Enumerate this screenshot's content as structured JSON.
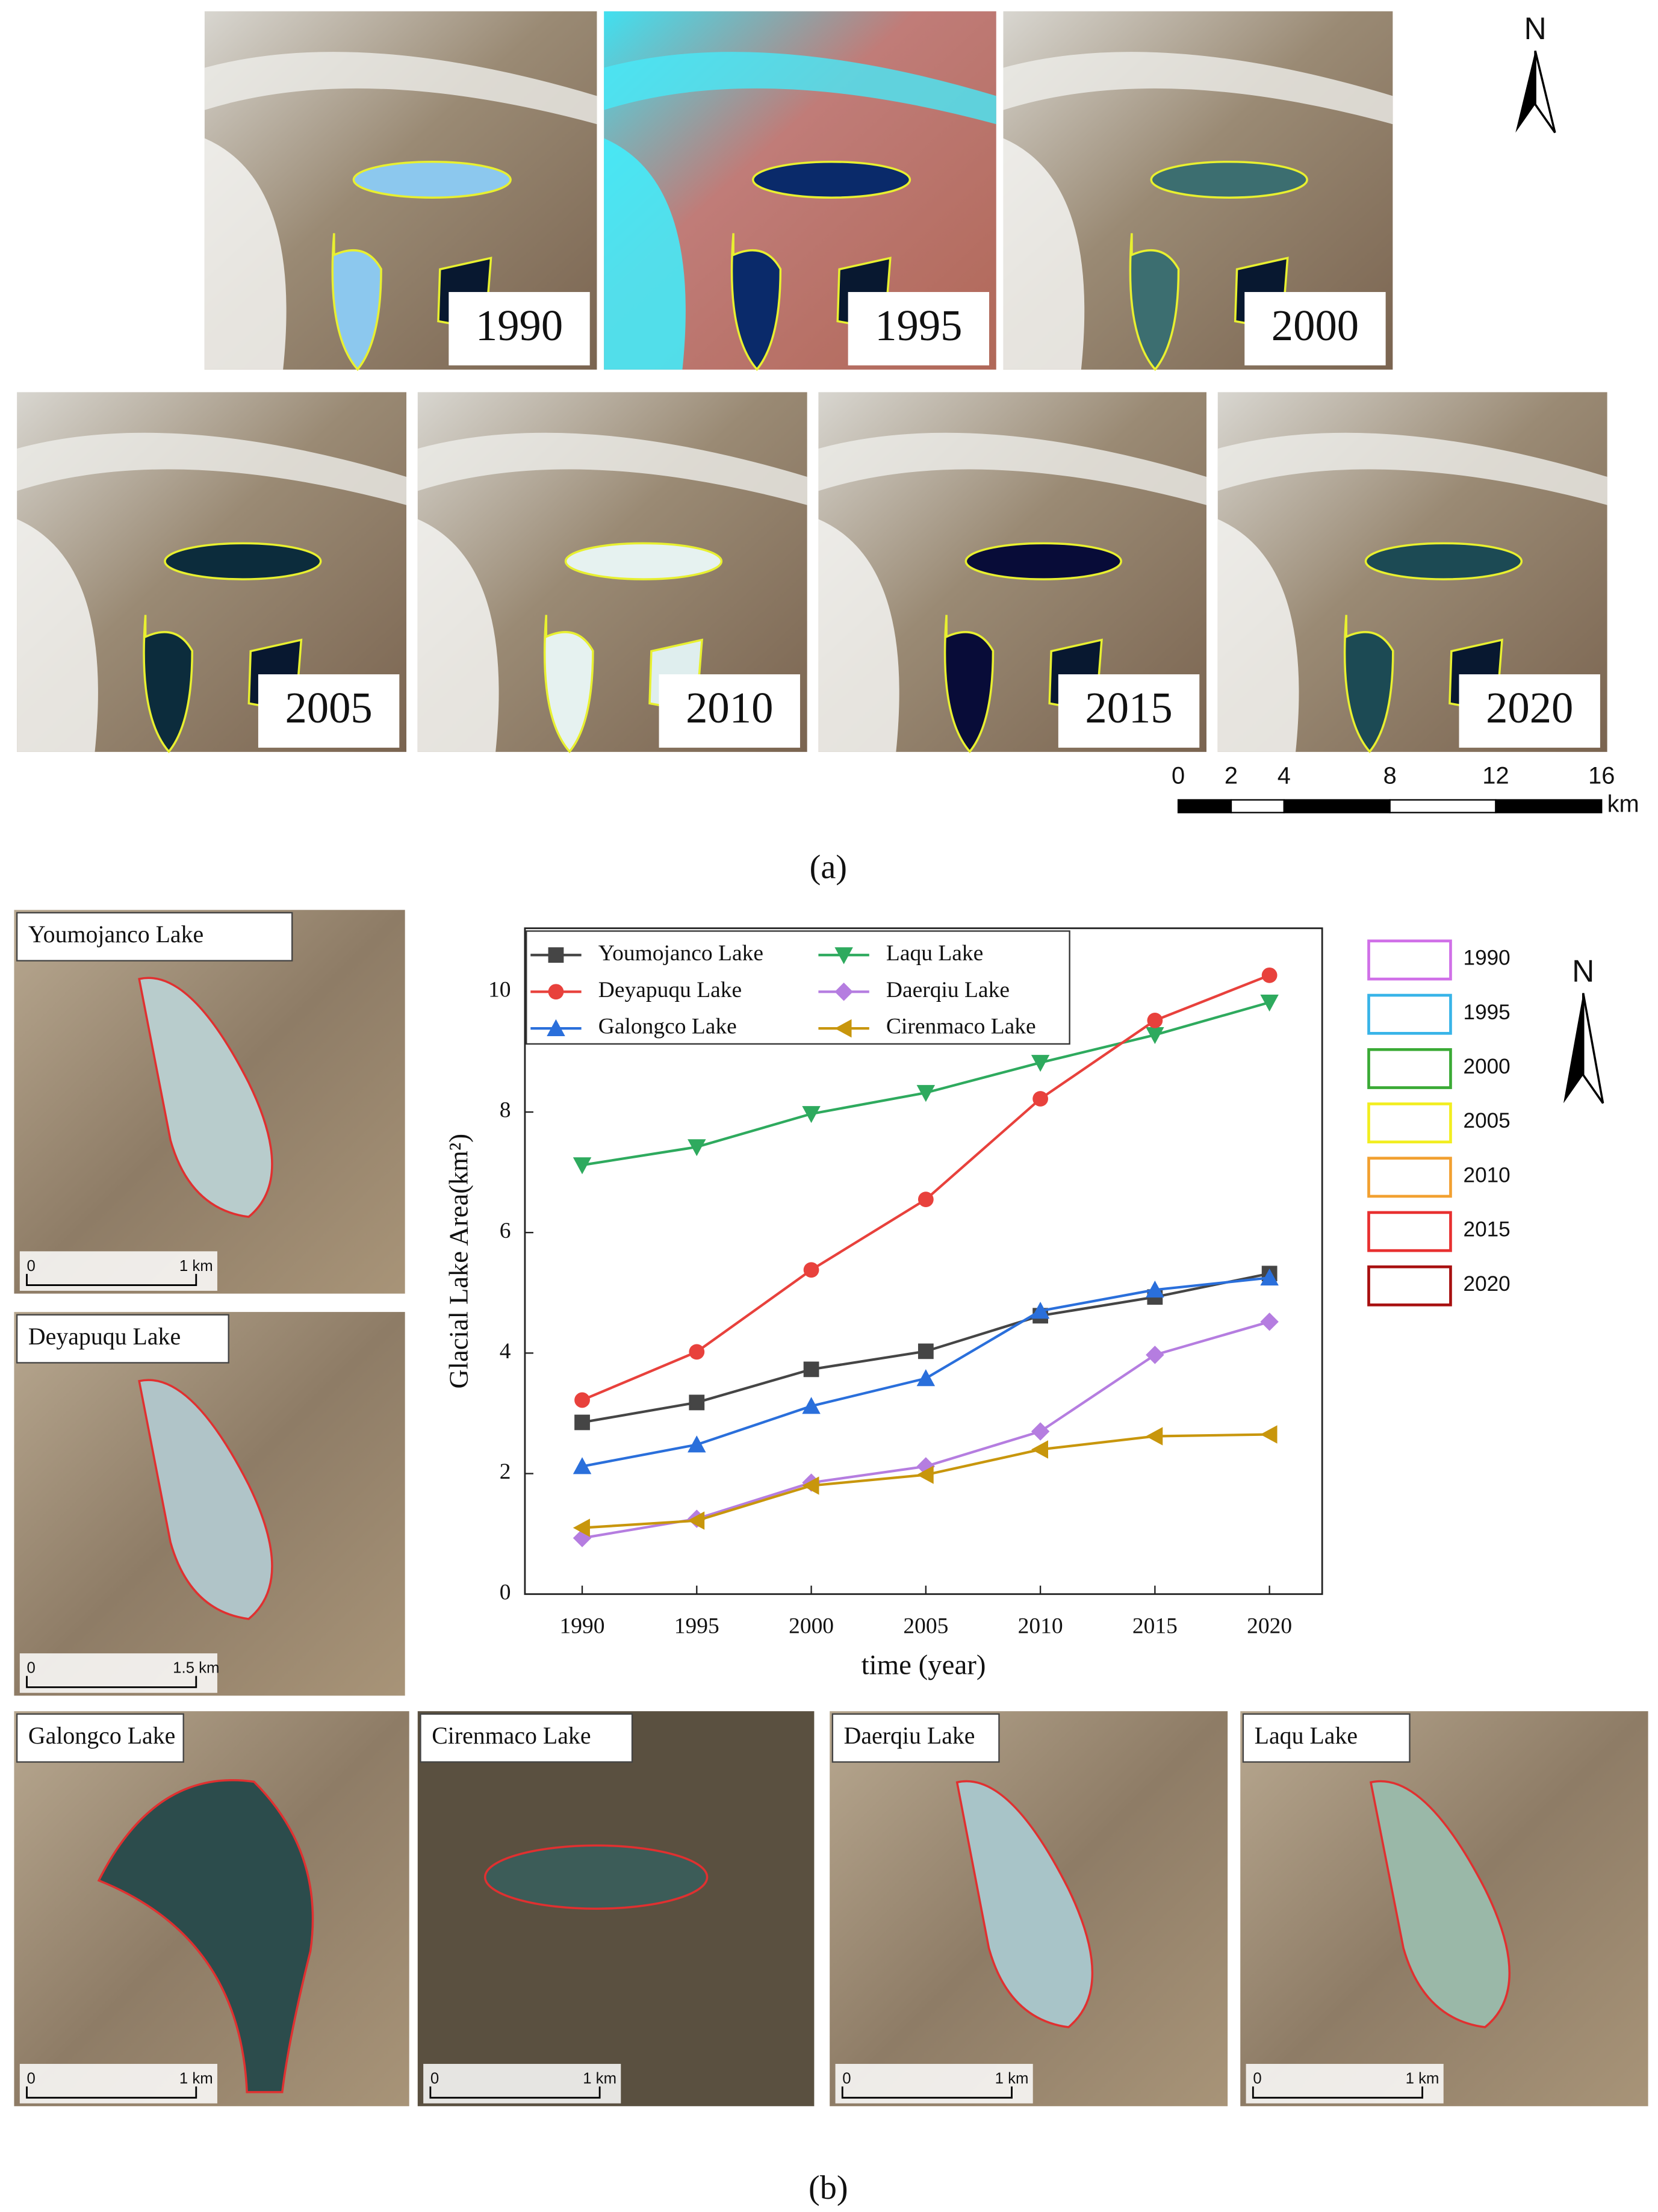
{
  "panel_a": {
    "years": [
      "1990",
      "1995",
      "2000",
      "2005",
      "2010",
      "2015",
      "2020"
    ],
    "north": "N",
    "scale_bar": {
      "ticks": [
        0,
        2,
        4,
        8,
        12,
        16
      ],
      "unit": "km"
    },
    "caption": "(a)"
  },
  "panel_b": {
    "lakes": [
      {
        "name": "Youmojanco Lake",
        "scale_zero": "0",
        "scale": "1 km"
      },
      {
        "name": "Deyapuqu Lake",
        "scale_zero": "0",
        "scale": "1.5 km"
      },
      {
        "name": "Galongco Lake",
        "scale_zero": "0",
        "scale": "1 km"
      },
      {
        "name": "Cirenmaco Lake",
        "scale_zero": "0",
        "scale": "1 km"
      },
      {
        "name": "Daerqiu Lake",
        "scale_zero": "0",
        "scale": "1 km"
      },
      {
        "name": "Laqu Lake",
        "scale_zero": "0",
        "scale": "1 km"
      }
    ],
    "year_legend": [
      {
        "year": "1990",
        "color": "#d070e8"
      },
      {
        "year": "1995",
        "color": "#38b4e8"
      },
      {
        "year": "2000",
        "color": "#3aaa35"
      },
      {
        "year": "2005",
        "color": "#f2ee20"
      },
      {
        "year": "2010",
        "color": "#f2a030"
      },
      {
        "year": "2015",
        "color": "#e83030"
      },
      {
        "year": "2020",
        "color": "#a81010"
      }
    ],
    "north": "N",
    "caption": "(b)"
  },
  "chart_data": {
    "type": "line",
    "x_label": "time (year)",
    "y_label": "Glacial Lake Area(km²)",
    "x": [
      1990,
      1995,
      2000,
      2005,
      2010,
      2015,
      2020
    ],
    "xlim": [
      1987.5,
      2022.3
    ],
    "ylim": [
      0,
      11.05
    ],
    "xticks": [
      1990,
      1995,
      2000,
      2005,
      2010,
      2015,
      2020
    ],
    "yticks": [
      0,
      2,
      4,
      6,
      8,
      10
    ],
    "series": [
      {
        "name": "Youmojanco Lake",
        "color": "#454545",
        "marker": "square",
        "values": [
          2.85,
          3.18,
          3.73,
          4.03,
          4.62,
          4.93,
          5.32
        ]
      },
      {
        "name": "Laqu Lake",
        "color": "#2eaa5e",
        "marker": "triangle-down",
        "values": [
          7.12,
          7.42,
          7.97,
          8.32,
          8.82,
          9.28,
          9.82
        ]
      },
      {
        "name": "Deyapuqu Lake",
        "color": "#e8413c",
        "marker": "circle",
        "values": [
          3.22,
          4.02,
          5.38,
          6.55,
          8.22,
          9.52,
          10.27
        ]
      },
      {
        "name": "Daerqiu Lake",
        "color": "#b57de0",
        "marker": "diamond",
        "values": [
          0.93,
          1.25,
          1.85,
          2.12,
          2.7,
          3.97,
          4.52
        ]
      },
      {
        "name": "Galongco Lake",
        "color": "#2a6fdb",
        "marker": "triangle-up",
        "values": [
          2.12,
          2.48,
          3.12,
          3.58,
          4.7,
          5.05,
          5.25
        ]
      },
      {
        "name": "Cirenmaco Lake",
        "color": "#c8960c",
        "marker": "triangle-left",
        "values": [
          1.1,
          1.22,
          1.8,
          1.98,
          2.4,
          2.62,
          2.65
        ]
      }
    ]
  }
}
